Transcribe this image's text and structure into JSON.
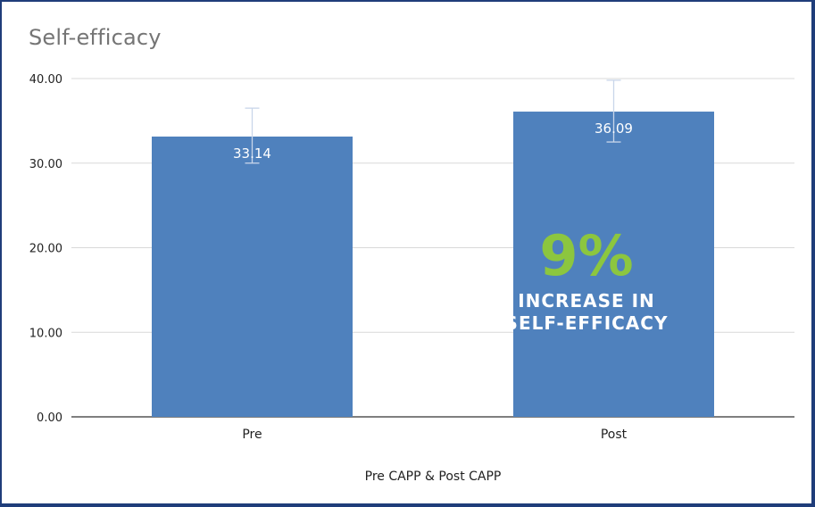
{
  "chart_data": {
    "type": "bar",
    "title": "Self-efficacy",
    "xlabel": "Pre CAPP & Post CAPP",
    "ylabel": "",
    "categories": [
      "Pre",
      "Post"
    ],
    "values": [
      33.14,
      36.09
    ],
    "value_labels": [
      "33.14",
      "36.09"
    ],
    "error_bars": [
      [
        30.0,
        36.5
      ],
      [
        32.5,
        39.8
      ]
    ],
    "ylim": [
      0,
      40
    ],
    "yticks": [
      "0.00",
      "10.00",
      "20.00",
      "30.00",
      "40.00"
    ],
    "grid": true,
    "bar_color": "#4f81bd",
    "annotation": {
      "big_text": "9%",
      "line1": "INCREASE IN",
      "line2": "SELF-EFFICACY",
      "big_color": "#8cc63f"
    }
  }
}
